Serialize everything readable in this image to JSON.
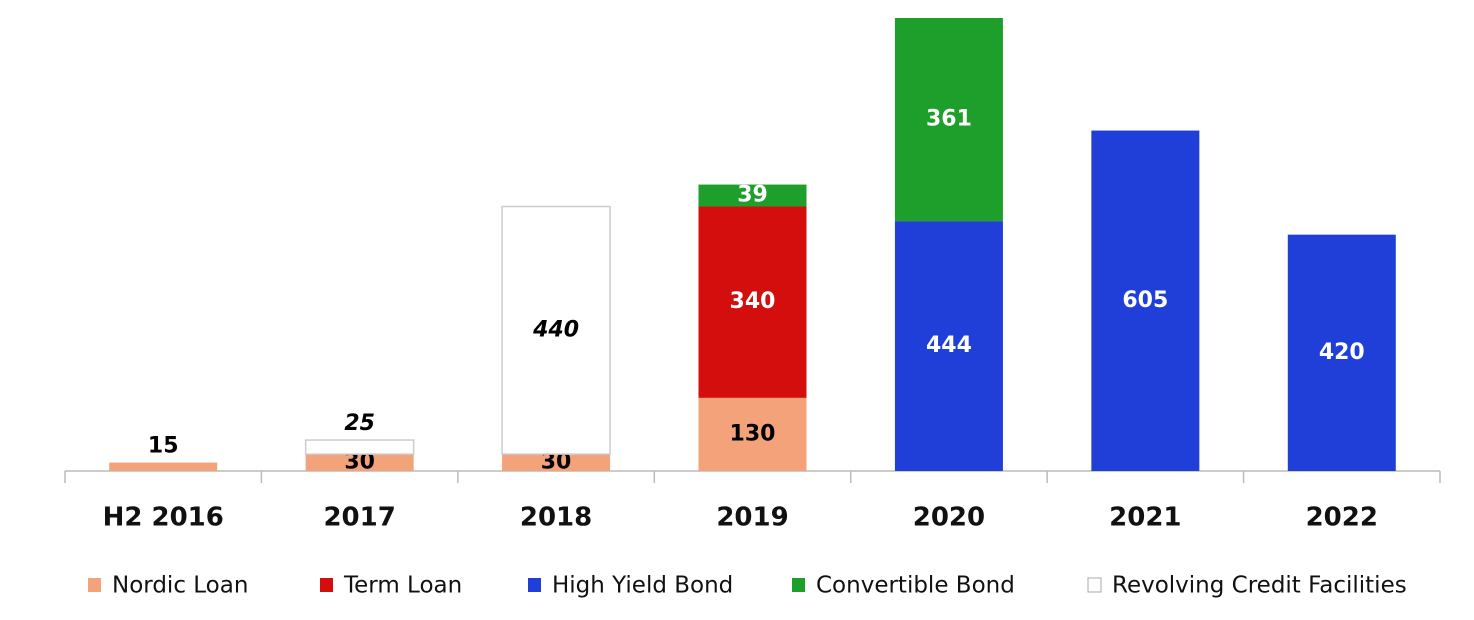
{
  "chart_data": {
    "type": "stacked_bar",
    "categories": [
      "H2 2016",
      "2017",
      "2018",
      "2019",
      "2020",
      "2021",
      "2022"
    ],
    "series": [
      {
        "name": "Nordic Loan",
        "color": "#f4a27a",
        "label_color": "#000000",
        "values": [
          15,
          30,
          30,
          130,
          null,
          null,
          null
        ]
      },
      {
        "name": "Term Loan",
        "color": "#d40d0d",
        "label_color": "#ffffff",
        "values": [
          null,
          null,
          null,
          340,
          null,
          null,
          null
        ]
      },
      {
        "name": "High Yield Bond",
        "color": "#1f3fd8",
        "label_color": "#ffffff",
        "values": [
          null,
          null,
          null,
          null,
          444,
          605,
          420
        ]
      },
      {
        "name": "Convertible Bond",
        "color": "#1e9e2a",
        "label_color": "#ffffff",
        "values": [
          null,
          null,
          null,
          39,
          361,
          null,
          null
        ]
      },
      {
        "name": "Revolving Credit Facilities",
        "color": "#ffffff",
        "label_color": "#000000",
        "label_italic": true,
        "values": [
          null,
          25,
          440,
          null,
          null,
          null,
          null
        ]
      }
    ],
    "legend": "bottom"
  }
}
